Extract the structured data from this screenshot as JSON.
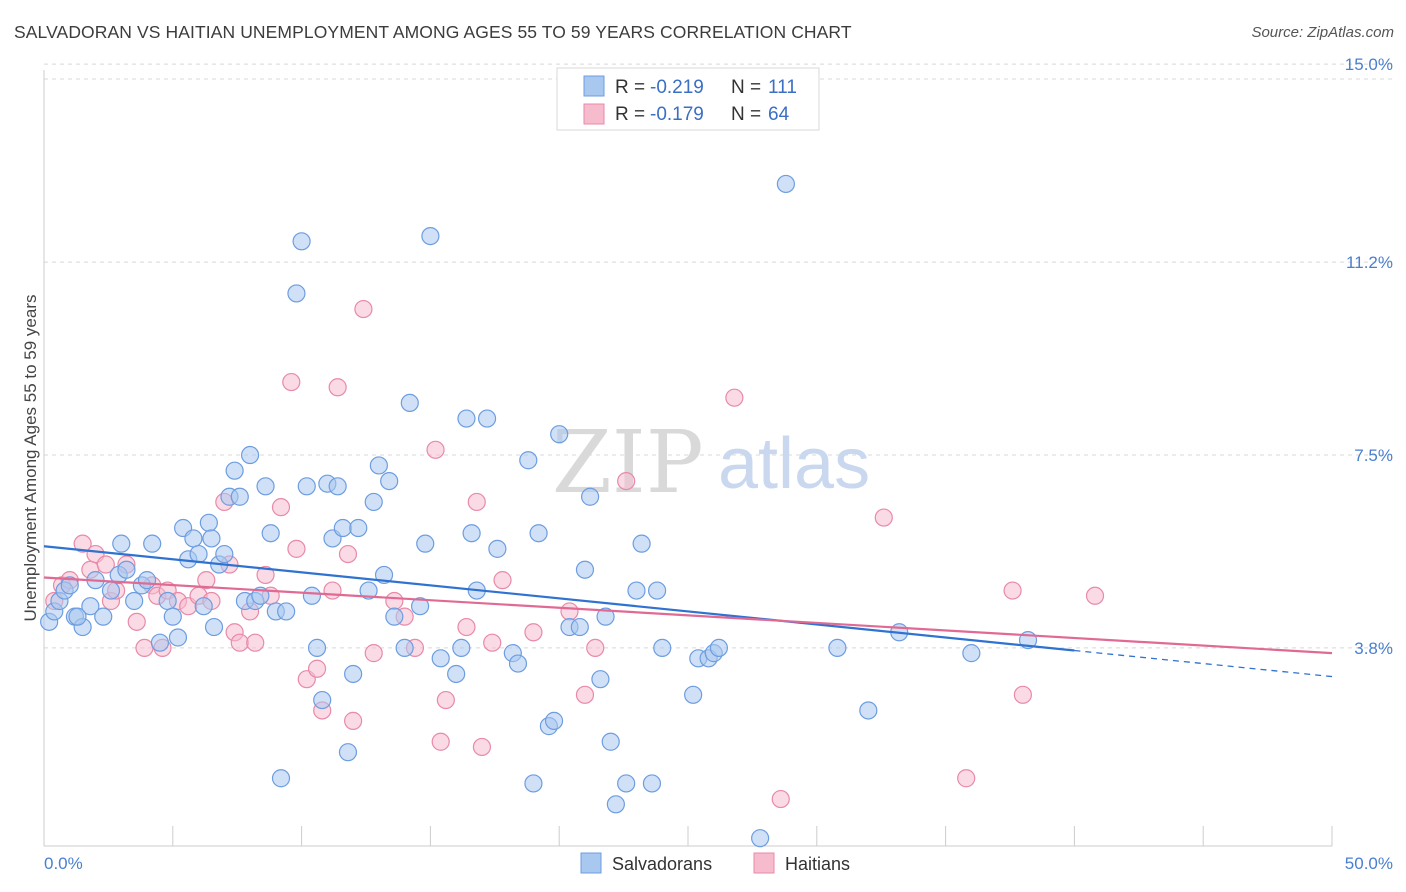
{
  "title": "SALVADORAN VS HAITIAN UNEMPLOYMENT AMONG AGES 55 TO 59 YEARS CORRELATION CHART",
  "source": "Source: ZipAtlas.com",
  "watermark": {
    "zip": "ZIP",
    "atlas": "atlas"
  },
  "colors": {
    "blue_fill": "#a9c8f0",
    "blue_stroke": "#6d9de0",
    "blue_line": "#2f72d0",
    "pink_fill": "#f6bccd",
    "pink_stroke": "#e88aa8",
    "pink_line": "#e06a94",
    "tick_text": "#4a7fd0",
    "grid": "#d8d8d8"
  },
  "legend": {
    "rows": [
      {
        "r_label": "R =",
        "r_value": "-0.219",
        "n_label": "N =",
        "n_value": "111"
      },
      {
        "r_label": "R =",
        "r_value": "-0.179",
        "n_label": "N =",
        "n_value": "64"
      }
    ]
  },
  "chart_data": {
    "type": "scatter",
    "title": "SALVADORAN VS HAITIAN UNEMPLOYMENT AMONG AGES 55 TO 59 YEARS CORRELATION CHART",
    "xlabel": "",
    "ylabel": "Unemployment Among Ages 55 to 59 years",
    "xlim": [
      0,
      50
    ],
    "ylim": [
      0,
      15.5
    ],
    "x_tick_labels": [
      "0.0%",
      "50.0%"
    ],
    "y_ticks": [
      3.8,
      7.5,
      11.2,
      15.0
    ],
    "y_tick_labels": [
      "3.8%",
      "7.5%",
      "11.2%",
      "15.0%"
    ],
    "grid": "horizontal dashed",
    "legend_position": "top-center",
    "series": [
      {
        "name": "Salvadorans",
        "color": "#a9c8f0",
        "trend": {
          "x0": 0,
          "y0": 5.75,
          "x1": 40,
          "y1": 3.75,
          "dashed_to_x": 50,
          "dashed_to_y": 3.25
        },
        "points": [
          [
            0.2,
            4.3
          ],
          [
            0.4,
            4.5
          ],
          [
            0.6,
            4.7
          ],
          [
            0.8,
            4.9
          ],
          [
            1.0,
            5.0
          ],
          [
            1.2,
            4.4
          ],
          [
            1.5,
            4.2
          ],
          [
            1.8,
            4.6
          ],
          [
            2.0,
            5.1
          ],
          [
            2.3,
            4.4
          ],
          [
            2.6,
            4.9
          ],
          [
            2.9,
            5.2
          ],
          [
            3.0,
            5.8
          ],
          [
            3.2,
            5.3
          ],
          [
            3.5,
            4.7
          ],
          [
            3.8,
            5.0
          ],
          [
            4.0,
            5.1
          ],
          [
            4.2,
            5.8
          ],
          [
            4.5,
            3.9
          ],
          [
            4.8,
            4.7
          ],
          [
            5.0,
            4.4
          ],
          [
            5.2,
            4.0
          ],
          [
            5.4,
            6.1
          ],
          [
            5.6,
            5.5
          ],
          [
            5.8,
            5.9
          ],
          [
            6.0,
            5.6
          ],
          [
            6.2,
            4.6
          ],
          [
            6.4,
            6.2
          ],
          [
            6.6,
            4.2
          ],
          [
            6.8,
            5.4
          ],
          [
            7.0,
            5.6
          ],
          [
            7.2,
            6.7
          ],
          [
            7.4,
            7.2
          ],
          [
            7.6,
            6.7
          ],
          [
            7.8,
            4.7
          ],
          [
            8.0,
            7.5
          ],
          [
            8.2,
            4.7
          ],
          [
            8.4,
            4.8
          ],
          [
            8.6,
            6.9
          ],
          [
            8.8,
            6.0
          ],
          [
            9.0,
            4.5
          ],
          [
            9.2,
            1.3
          ],
          [
            9.4,
            4.5
          ],
          [
            9.8,
            10.6
          ],
          [
            10.0,
            11.6
          ],
          [
            10.2,
            6.9
          ],
          [
            10.4,
            4.8
          ],
          [
            10.6,
            3.8
          ],
          [
            10.8,
            2.8
          ],
          [
            11.0,
            6.95
          ],
          [
            11.2,
            5.9
          ],
          [
            11.4,
            6.9
          ],
          [
            11.6,
            6.1
          ],
          [
            11.8,
            1.8
          ],
          [
            12.0,
            3.3
          ],
          [
            12.2,
            6.1
          ],
          [
            12.6,
            4.9
          ],
          [
            12.8,
            6.6
          ],
          [
            13.0,
            7.3
          ],
          [
            13.2,
            5.2
          ],
          [
            13.4,
            7.0
          ],
          [
            13.6,
            4.4
          ],
          [
            14.0,
            3.8
          ],
          [
            14.2,
            8.5
          ],
          [
            14.6,
            4.6
          ],
          [
            14.8,
            5.8
          ],
          [
            15.0,
            11.7
          ],
          [
            15.4,
            3.6
          ],
          [
            16.0,
            3.3
          ],
          [
            16.2,
            3.8
          ],
          [
            16.4,
            8.2
          ],
          [
            16.6,
            6.0
          ],
          [
            16.8,
            4.9
          ],
          [
            17.2,
            8.2
          ],
          [
            17.6,
            5.7
          ],
          [
            18.2,
            3.7
          ],
          [
            18.4,
            3.5
          ],
          [
            18.8,
            7.4
          ],
          [
            19.0,
            1.2
          ],
          [
            19.2,
            6.0
          ],
          [
            19.6,
            2.3
          ],
          [
            19.8,
            2.4
          ],
          [
            20.0,
            7.9
          ],
          [
            20.4,
            4.2
          ],
          [
            20.8,
            4.2
          ],
          [
            21.0,
            5.3
          ],
          [
            21.2,
            6.7
          ],
          [
            21.6,
            3.2
          ],
          [
            21.8,
            4.4
          ],
          [
            22.0,
            2.0
          ],
          [
            22.2,
            0.8
          ],
          [
            22.6,
            1.2
          ],
          [
            23.0,
            4.9
          ],
          [
            23.2,
            5.8
          ],
          [
            23.6,
            1.2
          ],
          [
            23.8,
            4.9
          ],
          [
            24.0,
            3.8
          ],
          [
            25.2,
            2.9
          ],
          [
            25.4,
            3.6
          ],
          [
            25.8,
            3.6
          ],
          [
            26.0,
            3.7
          ],
          [
            26.2,
            3.8
          ],
          [
            28.8,
            12.7
          ],
          [
            30.8,
            3.8
          ],
          [
            32.0,
            2.6
          ],
          [
            33.2,
            4.1
          ],
          [
            36.0,
            3.7
          ],
          [
            38.2,
            3.95
          ],
          [
            6.5,
            5.9
          ],
          [
            1.3,
            4.4
          ],
          [
            27.8,
            0.15
          ]
        ]
      },
      {
        "name": "Haitians",
        "color": "#f6bccd",
        "trend": {
          "x0": 0,
          "y0": 5.15,
          "x1": 50,
          "y1": 3.7
        },
        "points": [
          [
            0.4,
            4.7
          ],
          [
            0.7,
            5.0
          ],
          [
            1.0,
            5.1
          ],
          [
            1.5,
            5.8
          ],
          [
            1.8,
            5.3
          ],
          [
            2.0,
            5.6
          ],
          [
            2.4,
            5.4
          ],
          [
            2.6,
            4.7
          ],
          [
            2.8,
            4.9
          ],
          [
            3.2,
            5.4
          ],
          [
            3.6,
            4.3
          ],
          [
            3.9,
            3.8
          ],
          [
            4.2,
            5.0
          ],
          [
            4.4,
            4.8
          ],
          [
            4.6,
            3.8
          ],
          [
            4.8,
            4.9
          ],
          [
            5.2,
            4.7
          ],
          [
            5.6,
            4.6
          ],
          [
            6.0,
            4.8
          ],
          [
            6.3,
            5.1
          ],
          [
            6.5,
            4.7
          ],
          [
            7.0,
            6.6
          ],
          [
            7.2,
            5.4
          ],
          [
            7.4,
            4.1
          ],
          [
            7.6,
            3.9
          ],
          [
            8.0,
            4.5
          ],
          [
            8.2,
            3.9
          ],
          [
            8.6,
            5.2
          ],
          [
            8.8,
            4.8
          ],
          [
            9.2,
            6.5
          ],
          [
            9.6,
            8.9
          ],
          [
            9.8,
            5.7
          ],
          [
            10.2,
            3.2
          ],
          [
            10.6,
            3.4
          ],
          [
            10.8,
            2.6
          ],
          [
            11.2,
            4.9
          ],
          [
            11.4,
            8.8
          ],
          [
            11.8,
            5.6
          ],
          [
            12.0,
            2.4
          ],
          [
            12.4,
            10.3
          ],
          [
            12.8,
            3.7
          ],
          [
            13.6,
            4.7
          ],
          [
            14.0,
            4.4
          ],
          [
            14.4,
            3.8
          ],
          [
            15.2,
            7.6
          ],
          [
            15.6,
            2.8
          ],
          [
            15.4,
            2.0
          ],
          [
            16.4,
            4.2
          ],
          [
            16.8,
            6.6
          ],
          [
            17.0,
            1.9
          ],
          [
            17.4,
            3.9
          ],
          [
            17.8,
            5.1
          ],
          [
            19.0,
            4.1
          ],
          [
            20.4,
            4.5
          ],
          [
            21.0,
            2.9
          ],
          [
            21.4,
            3.8
          ],
          [
            22.6,
            7.0
          ],
          [
            26.8,
            8.6
          ],
          [
            28.6,
            0.9
          ],
          [
            32.6,
            6.3
          ],
          [
            35.8,
            1.3
          ],
          [
            37.6,
            4.9
          ],
          [
            38.0,
            2.9
          ],
          [
            40.8,
            4.8
          ]
        ]
      }
    ]
  },
  "bottom_legend": [
    "Salvadorans",
    "Haitians"
  ]
}
